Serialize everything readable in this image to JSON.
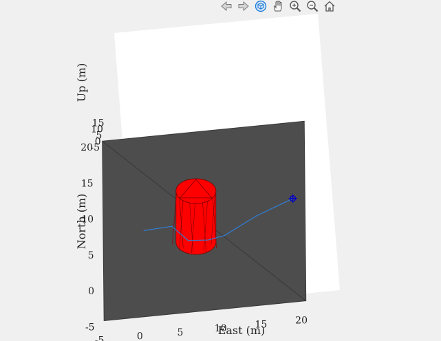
{
  "toolbar": {
    "items": [
      {
        "name": "back-arrow-icon"
      },
      {
        "name": "forward-arrow-icon"
      },
      {
        "name": "rotate-3d-icon"
      },
      {
        "name": "pan-hand-icon"
      },
      {
        "name": "zoom-in-icon"
      },
      {
        "name": "zoom-out-icon"
      },
      {
        "name": "home-icon"
      }
    ],
    "active_color": "#1e7bd9"
  },
  "chart_data": {
    "type": "scatter",
    "title": "",
    "xlabel": "East (m)",
    "ylabel": "North (m)",
    "zlabel": "Up (m)",
    "xlim": [
      -5,
      20
    ],
    "ylim": [
      -5,
      20
    ],
    "zlim": [
      -5,
      15
    ],
    "xticks": [
      "-5",
      "0",
      "5",
      "10",
      "15",
      "20"
    ],
    "yticks": [
      "-5",
      "0",
      "5",
      "10",
      "15",
      "20"
    ],
    "zticks": [
      "-5",
      "0",
      "5",
      "10",
      "15"
    ],
    "ground_color": "#4d4d4d",
    "obstacle": {
      "shape": "cylinder",
      "color": "#ff0000",
      "center_east": 7,
      "center_north": 8,
      "radius": 2
    },
    "trajectory": {
      "color": "#2f7ed8",
      "points": [
        [
          0,
          7
        ],
        [
          3.5,
          7.2
        ],
        [
          5.5,
          5
        ],
        [
          8,
          4.8
        ],
        [
          10,
          5.2
        ],
        [
          14,
          7.5
        ],
        [
          18.5,
          9.4
        ]
      ]
    },
    "marker": {
      "east": 18.5,
      "north": 9.4,
      "color": "#0000cc"
    }
  }
}
